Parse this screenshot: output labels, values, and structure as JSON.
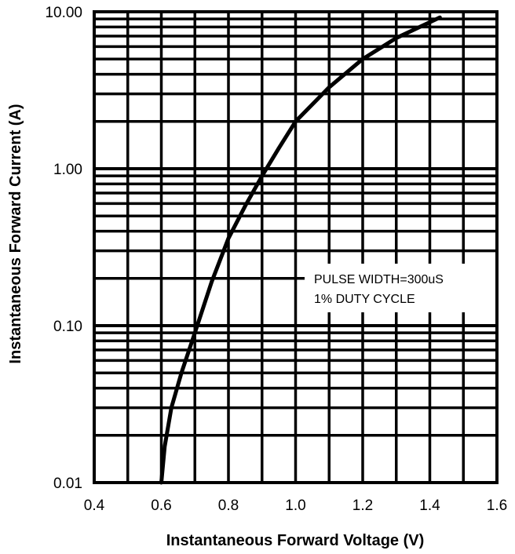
{
  "chart_data": {
    "type": "line",
    "title": "",
    "xlabel": "Instantaneous Forward Voltage (V)",
    "ylabel": "Instantaneous Forward Current (A)",
    "x_scale": "linear",
    "y_scale": "log",
    "xlim": [
      0.4,
      1.6
    ],
    "ylim": [
      0.01,
      10
    ],
    "x_ticks": [
      0.4,
      0.6,
      0.8,
      1.0,
      1.2,
      1.4,
      1.6
    ],
    "x_tick_labels": [
      "0.4",
      "0.6",
      "0.8",
      "1.0",
      "1.2",
      "1.4",
      "1.6"
    ],
    "y_ticks": [
      0.01,
      0.1,
      1,
      10
    ],
    "y_tick_labels": [
      "0.01",
      "0.10",
      "1.00",
      "10.00"
    ],
    "grid": true,
    "annotation": [
      "PULSE WIDTH=300uS",
      "1% DUTY CYCLE"
    ],
    "series": [
      {
        "x": [
          0.6,
          0.61,
          0.63,
          0.66,
          0.7,
          0.75,
          0.8,
          0.85,
          0.9,
          0.95,
          1.0,
          1.1,
          1.2,
          1.3,
          1.43
        ],
        "y": [
          0.01,
          0.017,
          0.03,
          0.05,
          0.09,
          0.19,
          0.36,
          0.58,
          0.9,
          1.35,
          2.0,
          3.3,
          5.0,
          6.8,
          9.2
        ]
      }
    ]
  }
}
